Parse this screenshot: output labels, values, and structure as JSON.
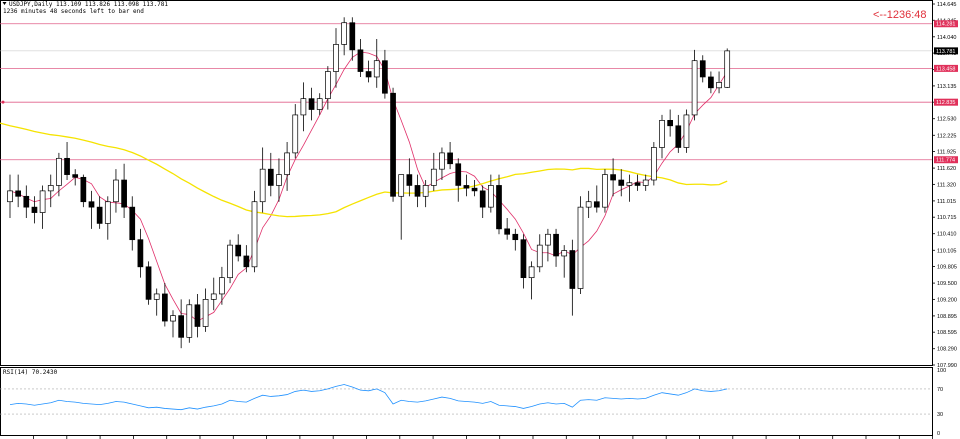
{
  "header": {
    "symbol_line": "USDJPY,Daily  113.109 113.826 113.098 113.781",
    "timer_line": "1236 minutes 48 seconds left to bar end"
  },
  "countdown": "<--1236:48",
  "colors": {
    "up_candle": "#ffffff",
    "down_candle": "#000000",
    "level_line": "#e0608a",
    "level_tag": "#e0305a",
    "ma_slow": "#f5e300",
    "ma_fast": "#e0306a",
    "rsi_line": "#1e90ff"
  },
  "price_axis": {
    "ticks": [
      "114.645",
      "114.345",
      "114.040",
      "113.740",
      "113.435",
      "113.135",
      "112.835",
      "112.530",
      "112.225",
      "111.925",
      "111.620",
      "111.320",
      "111.015",
      "110.715",
      "110.410",
      "110.105",
      "109.805",
      "109.500",
      "109.200",
      "108.895",
      "108.595",
      "108.290",
      "107.990"
    ],
    "current_price_tag": "113.781",
    "level_tags": [
      "114.281",
      "113.458",
      "112.835",
      "111.774"
    ]
  },
  "rsi": {
    "label": "RSI(14) 70.2430",
    "scale": [
      "100",
      "70",
      "30",
      "0"
    ]
  },
  "chart_data": {
    "type": "candlestick",
    "symbol": "USDJPY",
    "timeframe": "Daily",
    "ylim": [
      107.99,
      114.7
    ],
    "horizontal_levels": [
      114.281,
      113.458,
      112.835,
      111.774
    ],
    "current_price": 113.781,
    "candles": [
      {
        "o": 111.0,
        "h": 111.5,
        "l": 110.7,
        "c": 111.2
      },
      {
        "o": 111.2,
        "h": 111.5,
        "l": 110.9,
        "c": 111.1
      },
      {
        "o": 111.1,
        "h": 111.3,
        "l": 110.7,
        "c": 110.9
      },
      {
        "o": 110.9,
        "h": 111.1,
        "l": 110.6,
        "c": 110.8
      },
      {
        "o": 110.8,
        "h": 111.3,
        "l": 110.5,
        "c": 111.2
      },
      {
        "o": 111.2,
        "h": 111.5,
        "l": 110.9,
        "c": 111.3
      },
      {
        "o": 111.3,
        "h": 111.9,
        "l": 111.1,
        "c": 111.8
      },
      {
        "o": 111.8,
        "h": 112.1,
        "l": 111.4,
        "c": 111.5
      },
      {
        "o": 111.5,
        "h": 111.6,
        "l": 111.3,
        "c": 111.45
      },
      {
        "o": 111.45,
        "h": 111.5,
        "l": 110.9,
        "c": 111.0
      },
      {
        "o": 111.0,
        "h": 111.2,
        "l": 110.5,
        "c": 110.9
      },
      {
        "o": 110.9,
        "h": 111.1,
        "l": 110.5,
        "c": 110.6
      },
      {
        "o": 110.6,
        "h": 111.1,
        "l": 110.3,
        "c": 111.0
      },
      {
        "o": 111.0,
        "h": 111.6,
        "l": 110.8,
        "c": 111.4
      },
      {
        "o": 111.4,
        "h": 111.7,
        "l": 110.7,
        "c": 110.9
      },
      {
        "o": 110.9,
        "h": 111.1,
        "l": 110.1,
        "c": 110.3
      },
      {
        "o": 110.3,
        "h": 110.5,
        "l": 109.6,
        "c": 109.8
      },
      {
        "o": 109.8,
        "h": 109.9,
        "l": 109.1,
        "c": 109.2
      },
      {
        "o": 109.2,
        "h": 109.4,
        "l": 108.9,
        "c": 109.3
      },
      {
        "o": 109.3,
        "h": 109.5,
        "l": 108.7,
        "c": 108.8
      },
      {
        "o": 108.8,
        "h": 109.0,
        "l": 108.5,
        "c": 108.9
      },
      {
        "o": 108.9,
        "h": 109.2,
        "l": 108.3,
        "c": 108.5
      },
      {
        "o": 108.5,
        "h": 109.2,
        "l": 108.4,
        "c": 109.1
      },
      {
        "o": 109.1,
        "h": 109.3,
        "l": 108.5,
        "c": 108.7
      },
      {
        "o": 108.7,
        "h": 109.4,
        "l": 108.6,
        "c": 109.2
      },
      {
        "o": 109.2,
        "h": 109.6,
        "l": 109.0,
        "c": 109.3
      },
      {
        "o": 109.3,
        "h": 109.8,
        "l": 109.1,
        "c": 109.6
      },
      {
        "o": 109.6,
        "h": 110.3,
        "l": 109.5,
        "c": 110.2
      },
      {
        "o": 110.2,
        "h": 110.4,
        "l": 109.9,
        "c": 110.0
      },
      {
        "o": 110.0,
        "h": 110.2,
        "l": 109.7,
        "c": 109.8
      },
      {
        "o": 109.8,
        "h": 111.2,
        "l": 109.7,
        "c": 111.0
      },
      {
        "o": 111.0,
        "h": 112.0,
        "l": 110.8,
        "c": 111.6
      },
      {
        "o": 111.6,
        "h": 111.9,
        "l": 111.1,
        "c": 111.3
      },
      {
        "o": 111.3,
        "h": 111.8,
        "l": 111.0,
        "c": 111.5
      },
      {
        "o": 111.5,
        "h": 112.1,
        "l": 111.2,
        "c": 111.9
      },
      {
        "o": 111.9,
        "h": 112.8,
        "l": 111.8,
        "c": 112.6
      },
      {
        "o": 112.6,
        "h": 113.2,
        "l": 112.3,
        "c": 112.9
      },
      {
        "o": 112.9,
        "h": 113.1,
        "l": 112.5,
        "c": 112.7
      },
      {
        "o": 112.7,
        "h": 113.0,
        "l": 112.6,
        "c": 112.9
      },
      {
        "o": 112.9,
        "h": 113.5,
        "l": 112.7,
        "c": 113.4
      },
      {
        "o": 113.4,
        "h": 114.2,
        "l": 113.1,
        "c": 113.9
      },
      {
        "o": 113.9,
        "h": 114.4,
        "l": 113.7,
        "c": 114.3
      },
      {
        "o": 114.3,
        "h": 114.4,
        "l": 113.6,
        "c": 113.8
      },
      {
        "o": 113.8,
        "h": 114.0,
        "l": 113.3,
        "c": 113.4
      },
      {
        "o": 113.4,
        "h": 113.6,
        "l": 113.2,
        "c": 113.3
      },
      {
        "o": 113.3,
        "h": 114.0,
        "l": 113.1,
        "c": 113.6
      },
      {
        "o": 113.6,
        "h": 113.8,
        "l": 112.9,
        "c": 113.0
      },
      {
        "o": 113.0,
        "h": 113.1,
        "l": 111.0,
        "c": 111.1
      },
      {
        "o": 111.1,
        "h": 111.5,
        "l": 110.3,
        "c": 111.5
      },
      {
        "o": 111.5,
        "h": 111.8,
        "l": 111.1,
        "c": 111.3
      },
      {
        "o": 111.3,
        "h": 111.5,
        "l": 110.9,
        "c": 111.1
      },
      {
        "o": 111.1,
        "h": 111.4,
        "l": 110.9,
        "c": 111.3
      },
      {
        "o": 111.3,
        "h": 111.9,
        "l": 111.2,
        "c": 111.6
      },
      {
        "o": 111.6,
        "h": 112.0,
        "l": 111.4,
        "c": 111.9
      },
      {
        "o": 111.9,
        "h": 112.1,
        "l": 111.6,
        "c": 111.7
      },
      {
        "o": 111.7,
        "h": 111.8,
        "l": 111.0,
        "c": 111.3
      },
      {
        "o": 111.3,
        "h": 111.5,
        "l": 111.1,
        "c": 111.25
      },
      {
        "o": 111.25,
        "h": 111.4,
        "l": 111.1,
        "c": 111.2
      },
      {
        "o": 111.2,
        "h": 111.3,
        "l": 110.7,
        "c": 110.9
      },
      {
        "o": 110.9,
        "h": 111.5,
        "l": 110.8,
        "c": 111.3
      },
      {
        "o": 111.3,
        "h": 111.5,
        "l": 110.4,
        "c": 110.5
      },
      {
        "o": 110.5,
        "h": 110.7,
        "l": 110.3,
        "c": 110.4
      },
      {
        "o": 110.4,
        "h": 110.5,
        "l": 110.1,
        "c": 110.3
      },
      {
        "o": 110.3,
        "h": 110.4,
        "l": 109.4,
        "c": 109.6
      },
      {
        "o": 109.6,
        "h": 109.9,
        "l": 109.2,
        "c": 109.8
      },
      {
        "o": 109.8,
        "h": 110.4,
        "l": 109.7,
        "c": 110.2
      },
      {
        "o": 110.2,
        "h": 110.5,
        "l": 109.9,
        "c": 110.4
      },
      {
        "o": 110.4,
        "h": 110.5,
        "l": 109.8,
        "c": 110.0
      },
      {
        "o": 110.0,
        "h": 110.2,
        "l": 109.6,
        "c": 110.1
      },
      {
        "o": 110.1,
        "h": 110.3,
        "l": 108.9,
        "c": 109.4
      },
      {
        "o": 109.4,
        "h": 111.1,
        "l": 109.3,
        "c": 110.9
      },
      {
        "o": 110.9,
        "h": 111.2,
        "l": 110.7,
        "c": 111.0
      },
      {
        "o": 111.0,
        "h": 111.3,
        "l": 110.8,
        "c": 110.9
      },
      {
        "o": 110.9,
        "h": 111.6,
        "l": 110.8,
        "c": 111.5
      },
      {
        "o": 111.5,
        "h": 111.8,
        "l": 111.1,
        "c": 111.4
      },
      {
        "o": 111.4,
        "h": 111.6,
        "l": 111.1,
        "c": 111.3
      },
      {
        "o": 111.3,
        "h": 111.5,
        "l": 111.0,
        "c": 111.35
      },
      {
        "o": 111.35,
        "h": 111.5,
        "l": 111.2,
        "c": 111.3
      },
      {
        "o": 111.3,
        "h": 111.5,
        "l": 111.2,
        "c": 111.4
      },
      {
        "o": 111.4,
        "h": 112.1,
        "l": 111.3,
        "c": 112.0
      },
      {
        "o": 112.0,
        "h": 112.6,
        "l": 111.8,
        "c": 112.5
      },
      {
        "o": 112.5,
        "h": 112.7,
        "l": 112.2,
        "c": 112.4
      },
      {
        "o": 112.4,
        "h": 112.6,
        "l": 111.9,
        "c": 112.0
      },
      {
        "o": 112.0,
        "h": 112.7,
        "l": 111.9,
        "c": 112.6
      },
      {
        "o": 112.6,
        "h": 113.8,
        "l": 112.5,
        "c": 113.6
      },
      {
        "o": 113.6,
        "h": 113.7,
        "l": 113.2,
        "c": 113.3
      },
      {
        "o": 113.3,
        "h": 113.4,
        "l": 113.0,
        "c": 113.1
      },
      {
        "o": 113.1,
        "h": 113.4,
        "l": 113.0,
        "c": 113.2
      },
      {
        "o": 113.109,
        "h": 113.826,
        "l": 113.098,
        "c": 113.781
      }
    ],
    "rsi_values": [
      45,
      47,
      46,
      44,
      46,
      48,
      52,
      50,
      49,
      47,
      46,
      45,
      47,
      50,
      49,
      46,
      43,
      40,
      41,
      39,
      38,
      37,
      40,
      38,
      41,
      43,
      46,
      52,
      50,
      49,
      55,
      60,
      58,
      59,
      61,
      66,
      68,
      66,
      67,
      70,
      74,
      77,
      73,
      68,
      67,
      70,
      64,
      46,
      52,
      50,
      49,
      51,
      54,
      57,
      55,
      51,
      50,
      49,
      47,
      50,
      44,
      43,
      42,
      39,
      42,
      46,
      48,
      46,
      47,
      41,
      52,
      53,
      52,
      56,
      55,
      54,
      55,
      54,
      55,
      60,
      64,
      62,
      60,
      64,
      70,
      67,
      66,
      67,
      70
    ]
  }
}
